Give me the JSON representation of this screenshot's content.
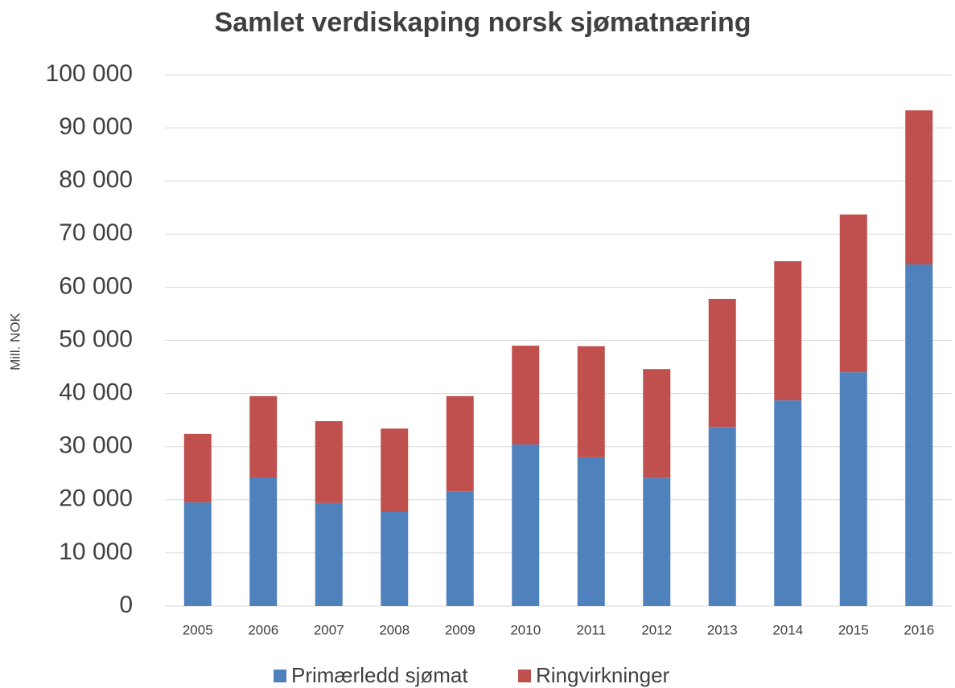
{
  "chart_data": {
    "type": "stacked_bar",
    "title": "Samlet verdiskaping norsk sjømatnæring",
    "y_label": "Mill. NOK",
    "categories": [
      "2005",
      "2006",
      "2007",
      "2008",
      "2009",
      "2010",
      "2011",
      "2012",
      "2013",
      "2014",
      "2015",
      "2016"
    ],
    "series": [
      {
        "name": "Primærledd sjømat",
        "color": "#4f81bd",
        "values": [
          19500,
          24200,
          19400,
          17700,
          21600,
          30400,
          28000,
          24100,
          33700,
          38700,
          44000,
          64300
        ]
      },
      {
        "name": "Ringvirkninger",
        "color": "#c0504d",
        "values": [
          12900,
          15300,
          15400,
          15700,
          17900,
          18600,
          20900,
          20500,
          24100,
          26200,
          29700,
          29000
        ]
      }
    ],
    "ylim": [
      0,
      100000
    ],
    "yticks": [
      0,
      {
        "value": 10000,
        "label": "10 000"
      },
      {
        "value": 20000,
        "label": "20 000"
      },
      {
        "value": 30000,
        "label": "30 000"
      },
      {
        "value": 40000,
        "label": "40 000"
      },
      {
        "value": 50000,
        "label": "50 000"
      },
      {
        "value": 60000,
        "label": "60 000"
      },
      {
        "value": 70000,
        "label": "70 000"
      },
      {
        "value": 80000,
        "label": "80 000"
      },
      {
        "value": 90000,
        "label": "90 000"
      },
      {
        "value": 100000,
        "label": "100 000"
      }
    ],
    "grid": true,
    "legend": "bottom"
  }
}
